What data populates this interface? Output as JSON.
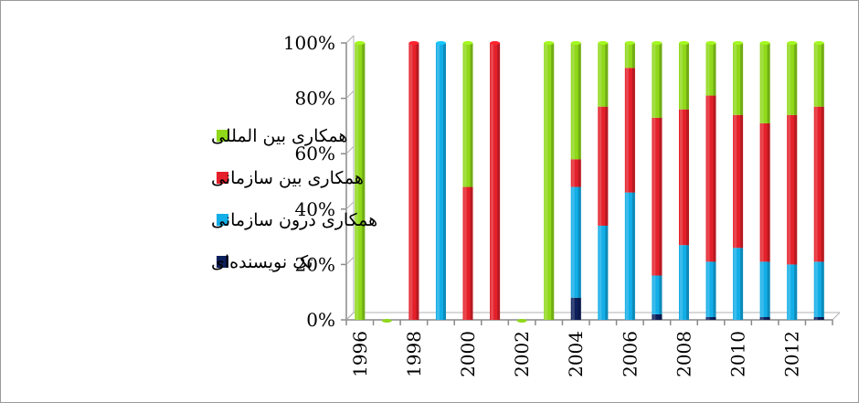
{
  "chart_data": {
    "type": "bar",
    "stacked": "percent",
    "categories": [
      "1996",
      "1997",
      "1998",
      "1999",
      "2000",
      "2001",
      "2002",
      "2003",
      "2004",
      "2005",
      "2006",
      "2007",
      "2008",
      "2009",
      "2010",
      "2011",
      "2012",
      "2013"
    ],
    "x_tick_labels": [
      "1996",
      "1998",
      "2000",
      "2002",
      "2004",
      "2006",
      "2008",
      "2010",
      "2012"
    ],
    "y_tick_labels": [
      "0%",
      "20%",
      "40%",
      "60%",
      "80%",
      "100%"
    ],
    "ylim": [
      0,
      100
    ],
    "series": [
      {
        "name": "تک نویسنده‌ای",
        "color": "#0d1f5c",
        "values": [
          0,
          0,
          0,
          0,
          0,
          0,
          0,
          0,
          8,
          0,
          0,
          2,
          0,
          1,
          0,
          1,
          0,
          1
        ]
      },
      {
        "name": "همکاری درون سازمانی",
        "color": "#12aee8",
        "values": [
          0,
          0,
          0,
          100,
          0,
          0,
          0,
          0,
          40,
          34,
          46,
          14,
          27,
          20,
          26,
          20,
          20,
          20
        ]
      },
      {
        "name": "همکاری بین سازمانی",
        "color": "#e5202a",
        "values": [
          0,
          0,
          100,
          0,
          48,
          100,
          0,
          0,
          10,
          43,
          45,
          57,
          49,
          60,
          48,
          50,
          54,
          56
        ]
      },
      {
        "name": "همکاری بین المللی",
        "color": "#8fd81a",
        "values": [
          100,
          0,
          0,
          0,
          52,
          0,
          0,
          100,
          42,
          23,
          9,
          27,
          24,
          19,
          26,
          29,
          26,
          23
        ]
      }
    ],
    "legend_order": [
      "همکاری بین المللی",
      "همکاری بین سازمانی",
      "همکاری درون سازمانی",
      "تک نویسنده‌ای"
    ],
    "legend_position": "left",
    "grid": false,
    "title": "",
    "xlabel": "",
    "ylabel": ""
  }
}
